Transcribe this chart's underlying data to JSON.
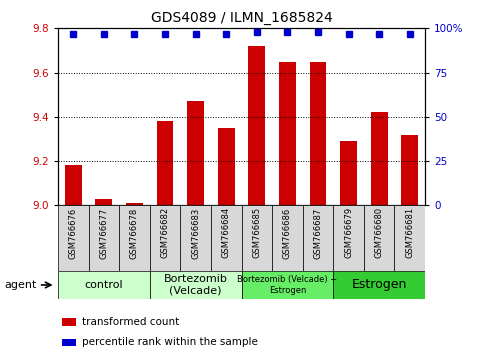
{
  "title": "GDS4089 / ILMN_1685824",
  "samples": [
    "GSM766676",
    "GSM766677",
    "GSM766678",
    "GSM766682",
    "GSM766683",
    "GSM766684",
    "GSM766685",
    "GSM766686",
    "GSM766687",
    "GSM766679",
    "GSM766680",
    "GSM766681"
  ],
  "bar_values": [
    9.18,
    9.03,
    9.01,
    9.38,
    9.47,
    9.35,
    9.72,
    9.65,
    9.65,
    9.29,
    9.42,
    9.32
  ],
  "percentile_values": [
    97,
    97,
    97,
    97,
    97,
    97,
    98,
    98,
    98,
    97,
    97,
    97
  ],
  "bar_color": "#cc0000",
  "percentile_color": "#0000cc",
  "ylim_left": [
    9.0,
    9.8
  ],
  "ylim_right": [
    0,
    100
  ],
  "yticks_left": [
    9.0,
    9.2,
    9.4,
    9.6,
    9.8
  ],
  "yticks_right": [
    0,
    25,
    50,
    75,
    100
  ],
  "ytick_labels_right": [
    "0",
    "25",
    "50",
    "75",
    "100%"
  ],
  "group_labels": [
    "control",
    "Bortezomib\n(Velcade)",
    "Bortezomib (Velcade) +\nEstrogen",
    "Estrogen"
  ],
  "group_starts": [
    0,
    3,
    6,
    9
  ],
  "group_ends": [
    3,
    6,
    9,
    12
  ],
  "group_colors": [
    "#ccffcc",
    "#ccffcc",
    "#66ee66",
    "#33cc33"
  ],
  "group_font_sizes": [
    8,
    8,
    6,
    9
  ],
  "legend_bar_label": "transformed count",
  "legend_percentile_label": "percentile rank within the sample",
  "agent_label": "agent",
  "tick_box_color": "#d8d8d8",
  "tick_label_color_left": "#cc0000",
  "tick_label_color_right": "#0000cc",
  "title_fontsize": 10
}
